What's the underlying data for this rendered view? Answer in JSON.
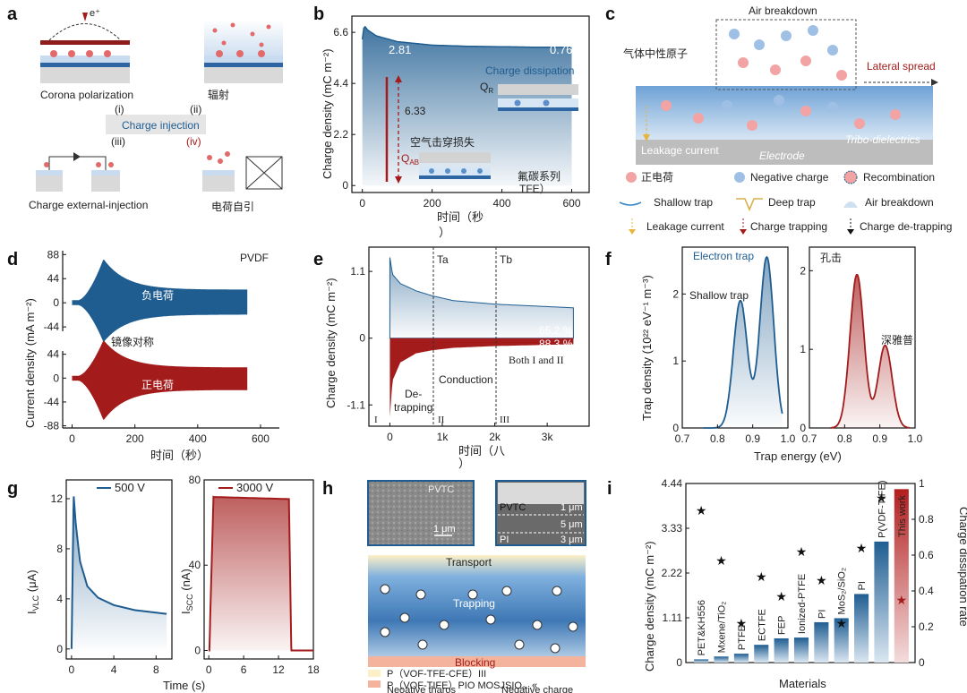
{
  "panel_labels": [
    "a",
    "b",
    "c",
    "d",
    "e",
    "f",
    "g",
    "h",
    "i"
  ],
  "panel_a": {
    "e_label": "e⁺",
    "corona": "Corona polarization",
    "radiation": "辐射",
    "mode_i": "(i)",
    "mode_ii": "(ii)",
    "mode_iii": "(iii)",
    "mode_iv": "(iv)",
    "charge_injection": "Charge injection",
    "external": "Charge external-injection",
    "self": "电荷自引"
  },
  "panel_b": {
    "ylabel": "Charge density (mC m⁻²)",
    "xlabel": "时间（秒",
    "xlabel2": "）",
    "val_left": "2.81",
    "val_right": "0.76",
    "arrow_val": "6.33",
    "dissipation": "Charge dissipation",
    "qr": "Q",
    "qr_sub": "R",
    "qab": "Q",
    "qab_sub": "AB",
    "breakdown_loss": "空气击穿损失",
    "material": "氟碳系列",
    "material2": "TFE）",
    "chart_data": {
      "type": "line",
      "x": [
        0,
        5,
        15,
        40,
        100,
        200,
        300,
        400,
        500,
        600
      ],
      "y": [
        6.3,
        6.9,
        6.7,
        6.45,
        6.2,
        6.05,
        6.0,
        5.98,
        5.96,
        5.95
      ],
      "xlim": [
        -30,
        650
      ],
      "ylim": [
        -0.3,
        7.3
      ],
      "xticks": [
        "0",
        "200",
        "400",
        "600"
      ],
      "yticks": [
        "0",
        "2.2",
        "4.4",
        "6.6"
      ]
    }
  },
  "panel_c": {
    "air_breakdown": "Air breakdown",
    "neutral": "气体中性原子",
    "lateral": "Lateral spread",
    "leakage": "Leakage current",
    "electrode": "Electrode",
    "tribo": "Tribo-dielectrics",
    "legend": {
      "positive": "正电荷",
      "negative": "Negative charge",
      "recombination": "Recombination",
      "shallow": "Shallow trap",
      "deep": "Deep trap",
      "air": "Air breakdown",
      "leak": "Leakage current",
      "trapping": "Charge trapping",
      "detrapping": "Charge de-trapping"
    }
  },
  "panel_d": {
    "ylabel": "Current density (mA m⁻²)",
    "xlabel": "时间（秒）",
    "pvdf": "PVDF",
    "negative_label": "负电荷",
    "mirror": "镜像对称",
    "positive_label": "正电荷",
    "colors": {
      "top": "#1f5d91",
      "bottom": "#a31b1b"
    },
    "chart_data": [
      {
        "type": "area",
        "name": "负电荷",
        "x_peak": 100,
        "peak": 80,
        "plateau": 24,
        "xlim": [
          -30,
          660
        ],
        "ylim": [
          -52,
          95
        ],
        "yticks": [
          "88",
          "44",
          "0",
          "-44"
        ]
      },
      {
        "type": "area",
        "name": "正电荷",
        "x_peak": 100,
        "peak": -78,
        "plateau": -22,
        "xlim": [
          -30,
          660
        ],
        "ylim": [
          -92,
          50
        ],
        "yticks": [
          "44",
          "0",
          "-44",
          "-88"
        ],
        "xticks": [
          "0",
          "200",
          "400",
          "600"
        ]
      }
    ]
  },
  "panel_e": {
    "ylabel": "Charge density (mC m⁻²)",
    "xlabel": "时间（八",
    "xlabel2": "）",
    "ta": "Ta",
    "tb": "Tb",
    "pct_top": "65.2 %",
    "pct_bottom": "88.3 %",
    "both": "Both I and II",
    "conduction": "Conduction",
    "detrapping": "De-",
    "detrapping2": "trapping",
    "r1": "I",
    "r2": "II",
    "r3": "III",
    "chart_data": {
      "type": "area",
      "x": [
        0,
        50,
        200,
        500,
        800,
        1200,
        2000,
        3000,
        3500
      ],
      "upper": [
        1.33,
        1.05,
        0.9,
        0.78,
        0.7,
        0.62,
        0.56,
        0.52,
        0.5
      ],
      "lower": [
        -1.3,
        -0.7,
        -0.4,
        -0.25,
        -0.2,
        -0.16,
        -0.13,
        -0.11,
        -0.1
      ],
      "xlim": [
        -400,
        3800
      ],
      "ylim": [
        -1.45,
        1.5
      ],
      "xticks": [
        "0",
        "1k",
        "2k",
        "3k"
      ],
      "yticks": [
        "1.1",
        "0",
        "-1.1"
      ]
    }
  },
  "panel_f": {
    "ylabel": "Trap density (10²² eV⁻¹ m⁻³)",
    "xlabel": "Trap energy (eV)",
    "electron_trap": "Electron trap",
    "hole_trap": "孔击",
    "shallow": "Shallow trap",
    "deep": "深雅普",
    "chart_data": [
      {
        "type": "line",
        "name": "Electron trap",
        "peaks": [
          [
            0.865,
            1.9
          ],
          [
            0.94,
            2.55
          ]
        ],
        "xlim": [
          0.7,
          1.0
        ],
        "ylim": [
          0,
          2.7
        ],
        "xticks": [
          "0.7",
          "0.8",
          "0.9",
          "1.0"
        ],
        "yticks": [
          "0",
          "1",
          "2"
        ]
      },
      {
        "type": "line",
        "name": "孔击",
        "peaks": [
          [
            0.835,
            1.95
          ],
          [
            0.915,
            1.05
          ]
        ],
        "xlim": [
          0.7,
          1.0
        ],
        "ylim": [
          0,
          2.3
        ],
        "xticks": [
          "0.7",
          "0.8",
          "0.9",
          "1.0"
        ],
        "yticks": [
          "0",
          "1",
          "2"
        ]
      }
    ]
  },
  "panel_g": {
    "xlabel": "Time (s)",
    "ylabel_left": "I",
    "ylabel_left_sub": "VLC",
    "ylabel_left_unit": " (μA)",
    "ylabel_right": "I",
    "ylabel_right_sub": "SCC",
    "ylabel_right_unit": " (nA)",
    "legend_left": "500 V",
    "legend_right": "3000 V",
    "chart_data": [
      {
        "type": "line",
        "name": "500 V",
        "x": [
          0,
          0.2,
          0.4,
          0.8,
          1.5,
          2.5,
          4,
          6,
          9
        ],
        "y": [
          0,
          12.3,
          10,
          7,
          5,
          4.1,
          3.5,
          3.1,
          2.8
        ],
        "xlim": [
          -0.5,
          9.5
        ],
        "ylim": [
          -0.8,
          13.5
        ],
        "xticks": [
          "0",
          "4",
          "8"
        ],
        "yticks": [
          "0",
          "4",
          "8",
          "12"
        ]
      },
      {
        "type": "line",
        "name": "3000 V",
        "x": [
          0,
          0.1,
          0.8,
          13.8,
          14.2,
          15,
          18
        ],
        "y": [
          0,
          0,
          72,
          71,
          0,
          0,
          0
        ],
        "xlim": [
          -0.8,
          18
        ],
        "ylim": [
          -4,
          80
        ],
        "xticks": [
          "0",
          "6",
          "12",
          "18"
        ],
        "yticks": [
          "0",
          "40",
          "80"
        ]
      }
    ]
  },
  "panel_h": {
    "pvtc_img": "PVTC",
    "scale1": "1 μm",
    "pvtc_layer": "PVTC",
    "pi_layer": "PI",
    "d1": "1 μm",
    "d2": "5 μm",
    "d3": "3 μm",
    "transport": "Transport",
    "trapping": "Trapping",
    "blocking": "Blocking",
    "legend1": "P（VOF-TFE-CFE）III",
    "legend2": "P（VOF-TIFE）PIO MOSJSIO。«",
    "legend3": "Neoative tharos",
    "legend3b": "Negative charge"
  },
  "panel_i": {
    "ylabel": "Charge density (mC m⁻²)",
    "ylabel_right": "Charge dissipation rate",
    "xlabel": "Materials",
    "this_work": "This work",
    "chart_data": {
      "type": "bar",
      "categories": [
        "PET&KH556",
        "Mxene/TiO₂",
        "PTFE",
        "ECTFE",
        "FEP",
        "Ionized-PTFE",
        "PI",
        "MoS₂/SiO₂",
        "PI",
        "P(VDF-TrFE)",
        "This work"
      ],
      "values": [
        0.08,
        0.15,
        0.22,
        0.44,
        0.6,
        0.62,
        1.0,
        1.1,
        1.7,
        3.0,
        4.3
      ],
      "dissipation_rate": [
        0.85,
        0.57,
        0.22,
        0.48,
        0.37,
        0.62,
        0.46,
        0.22,
        0.64,
        0.92,
        0.35
      ],
      "ylim": [
        0,
        4.44
      ],
      "ylim_right": [
        0,
        1.0
      ],
      "yticks": [
        "0",
        "1.11",
        "2.22",
        "3.33",
        "4.44"
      ],
      "yticks_right": [
        "0",
        "0.2",
        "0.4",
        "0.6",
        "0.8",
        "1"
      ]
    }
  }
}
